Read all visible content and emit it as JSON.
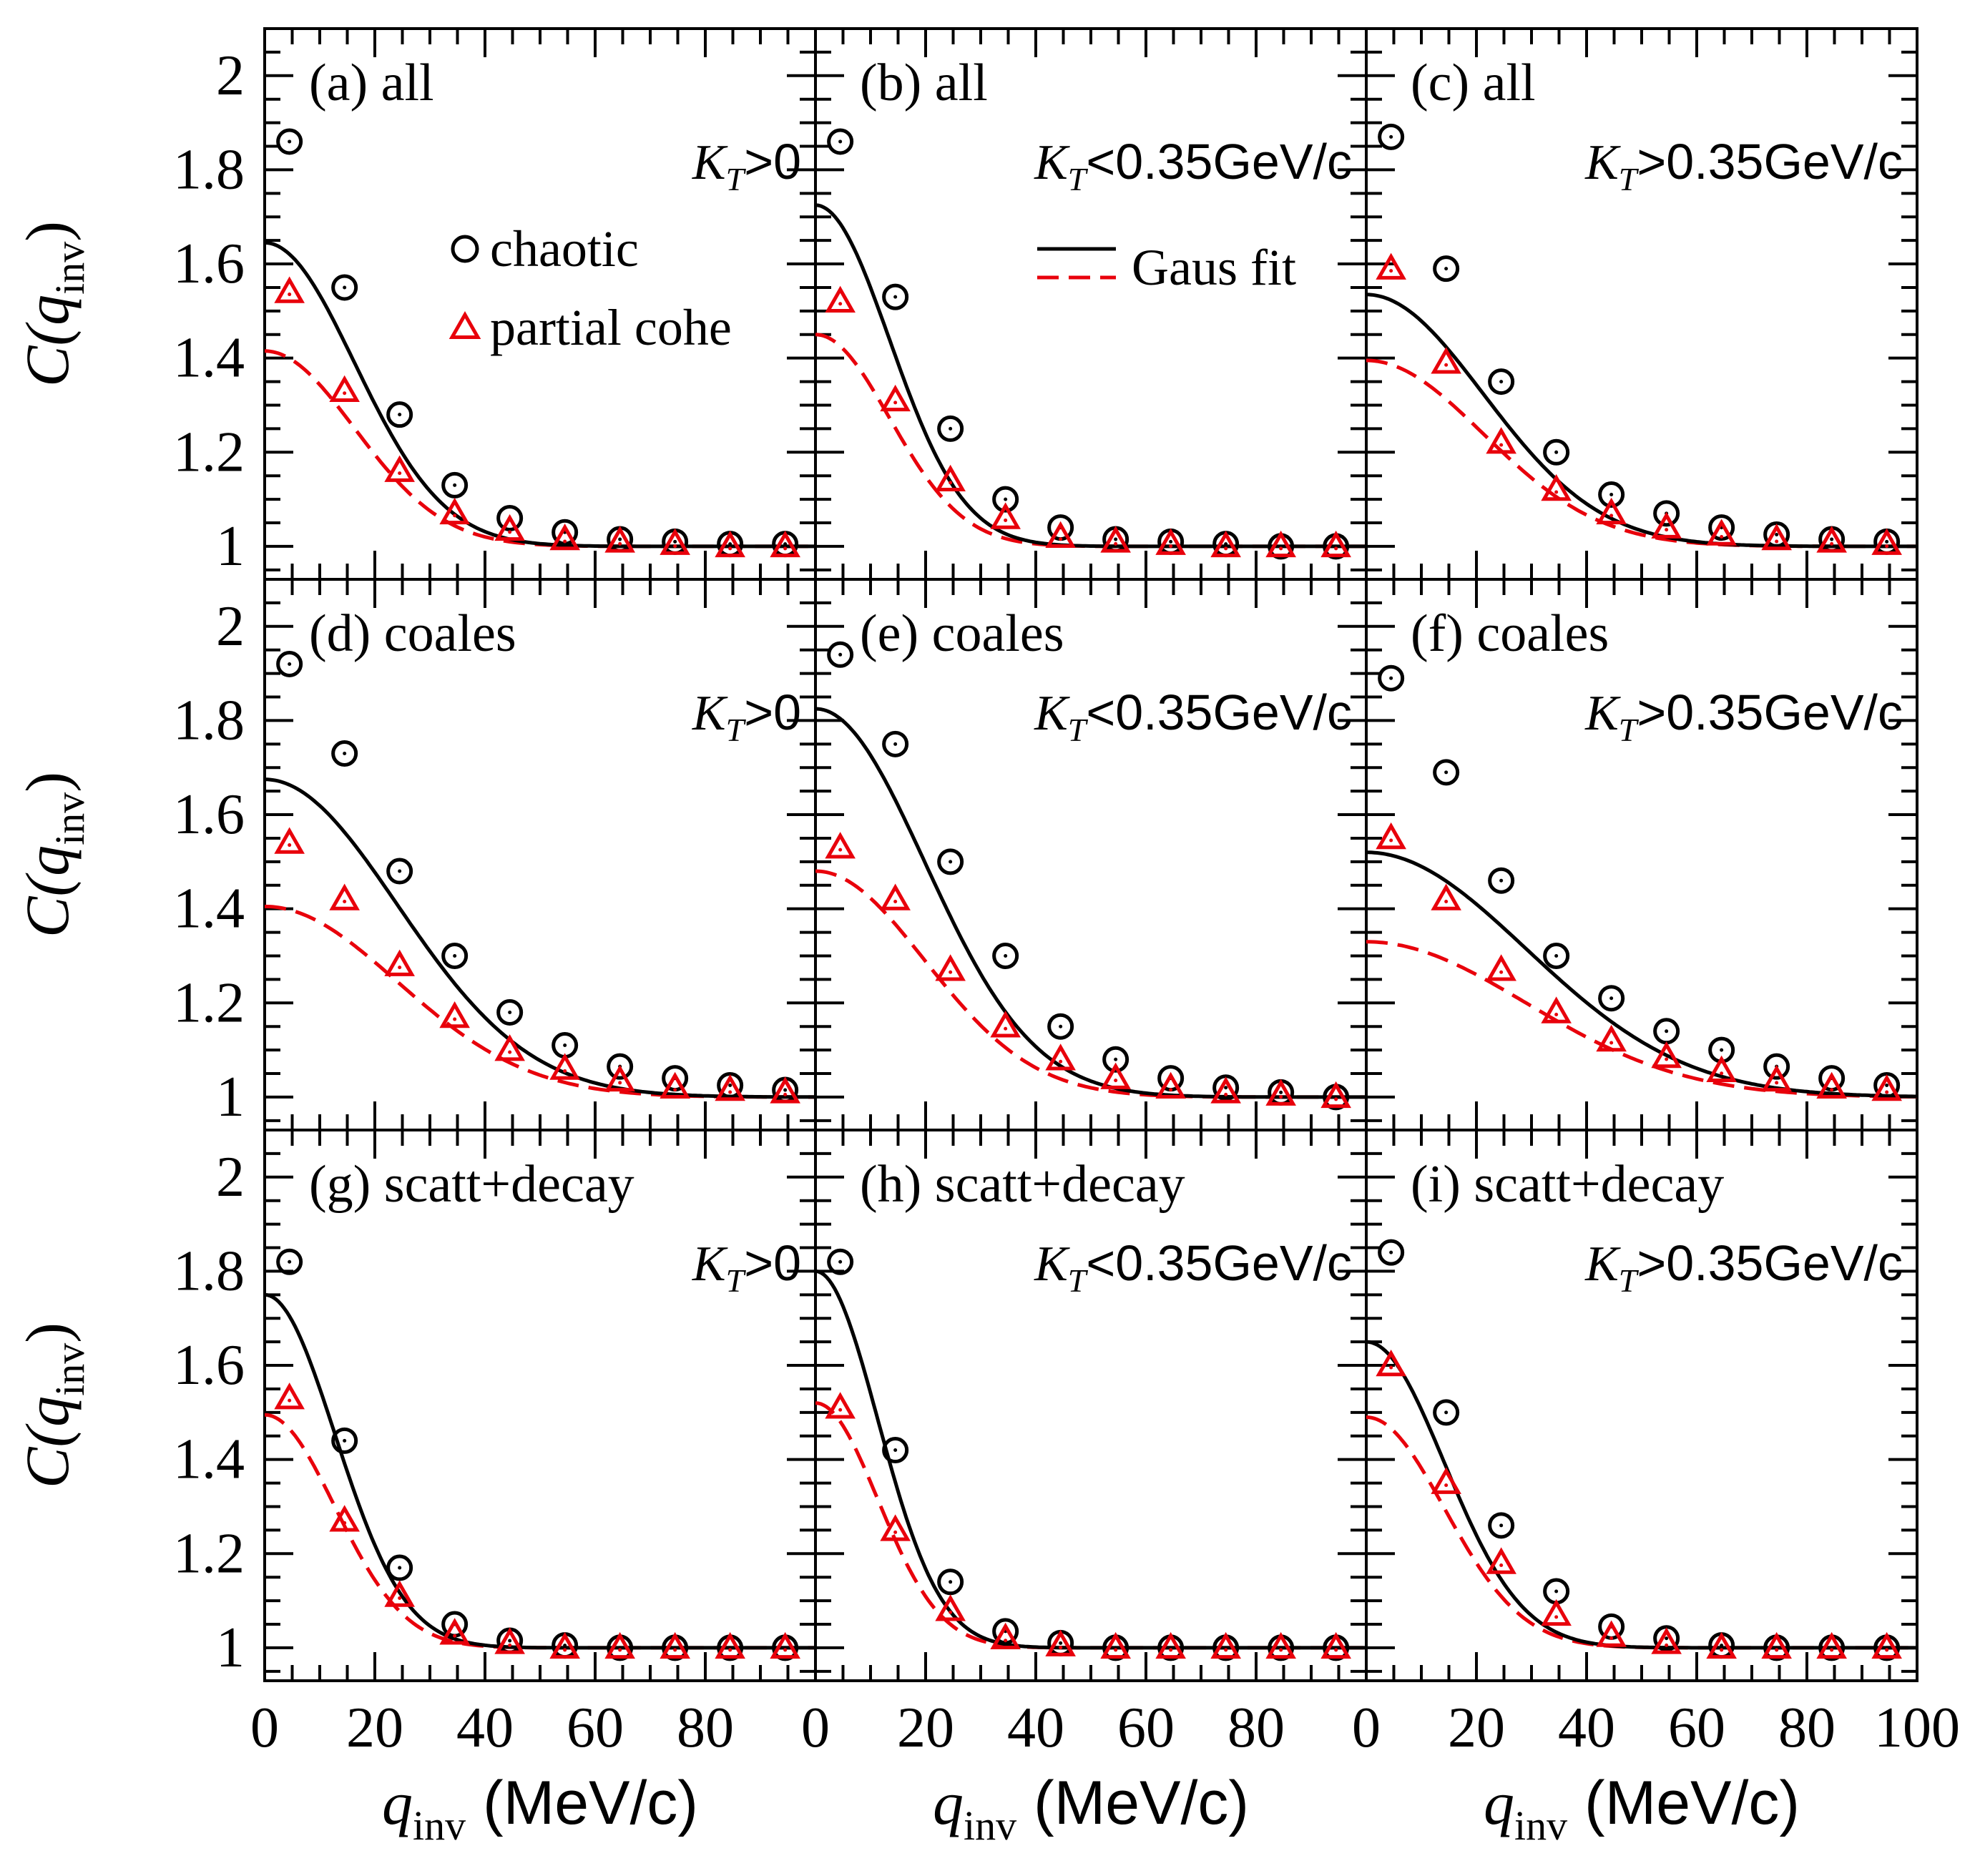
{
  "chart_data": {
    "type": "scatter",
    "layout": "3x3 grid, shared axes",
    "x_ticks": [
      "0",
      "20",
      "40",
      "60",
      "80",
      "100"
    ],
    "y_ticks": [
      "1",
      "1.2",
      "1.4",
      "1.6",
      "1.8",
      "2"
    ],
    "xlim": [
      0,
      100
    ],
    "ylim": [
      0.93,
      2.1
    ],
    "x_label": {
      "main": "q",
      "sub": "inv",
      "unit": " (MeV/c)"
    },
    "y_label": {
      "prefix": "C(",
      "main": "q",
      "sub": "inv",
      "suffix": ")"
    },
    "legend": {
      "chaotic": "chaotic",
      "partial": "partial cohe",
      "fit": "Gaus fit"
    },
    "colors": {
      "chaotic": "#000000",
      "partial": "#e8000b"
    },
    "x": [
      4.5,
      14.5,
      24.5,
      34.5,
      44.5,
      54.5,
      64.5,
      74.5,
      84.5,
      94.5
    ],
    "panels": [
      {
        "label": "(a) all",
        "kt": ">0",
        "chaotic": [
          1.86,
          1.55,
          1.28,
          1.13,
          1.06,
          1.03,
          1.015,
          1.01,
          1.005,
          1.005
        ],
        "partial": [
          1.54,
          1.33,
          1.16,
          1.07,
          1.035,
          1.015,
          1.01,
          1.005,
          1.0,
          1.0
        ],
        "fit_chaotic": {
          "amp": 0.645,
          "width": 23.0
        },
        "fit_partial": {
          "amp": 0.415,
          "width": 23.0
        }
      },
      {
        "label": "(b) all",
        "kt": "<0.35GeV/c",
        "chaotic": [
          1.86,
          1.53,
          1.25,
          1.1,
          1.04,
          1.015,
          1.01,
          1.005,
          1.0,
          1.0
        ],
        "partial": [
          1.52,
          1.31,
          1.14,
          1.06,
          1.02,
          1.01,
          1.005,
          1.0,
          1.0,
          1.0
        ],
        "fit_chaotic": {
          "amp": 0.725,
          "width": 19.0
        },
        "fit_partial": {
          "amp": 0.45,
          "width": 19.0
        }
      },
      {
        "label": "(c) all",
        "kt": ">0.35GeV/c",
        "chaotic": [
          1.87,
          1.59,
          1.35,
          1.2,
          1.11,
          1.07,
          1.04,
          1.025,
          1.015,
          1.01
        ],
        "partial": [
          1.59,
          1.39,
          1.22,
          1.12,
          1.07,
          1.04,
          1.025,
          1.015,
          1.01,
          1.005
        ],
        "fit_chaotic": {
          "amp": 0.535,
          "width": 30.0
        },
        "fit_partial": {
          "amp": 0.395,
          "width": 30.0
        }
      },
      {
        "label": "(d) coales",
        "kt": ">0",
        "chaotic": [
          1.92,
          1.73,
          1.48,
          1.3,
          1.18,
          1.11,
          1.065,
          1.04,
          1.025,
          1.015
        ],
        "partial": [
          1.54,
          1.42,
          1.28,
          1.17,
          1.1,
          1.06,
          1.035,
          1.02,
          1.015,
          1.01
        ],
        "fit_chaotic": {
          "amp": 0.675,
          "width": 34.0
        },
        "fit_partial": {
          "amp": 0.405,
          "width": 34.0
        }
      },
      {
        "label": "(e) coales",
        "kt": "<0.35GeV/c",
        "chaotic": [
          1.94,
          1.75,
          1.5,
          1.3,
          1.15,
          1.08,
          1.04,
          1.02,
          1.01,
          1.0
        ],
        "partial": [
          1.53,
          1.42,
          1.27,
          1.15,
          1.08,
          1.04,
          1.02,
          1.01,
          1.005,
          1.0
        ],
        "fit_chaotic": {
          "amp": 0.825,
          "width": 28.0
        },
        "fit_partial": {
          "amp": 0.48,
          "width": 28.0
        }
      },
      {
        "label": "(f) coales",
        "kt": ">0.35GeV/c",
        "chaotic": [
          1.89,
          1.69,
          1.46,
          1.3,
          1.21,
          1.14,
          1.1,
          1.065,
          1.04,
          1.025
        ],
        "partial": [
          1.55,
          1.42,
          1.27,
          1.18,
          1.12,
          1.085,
          1.055,
          1.035,
          1.02,
          1.015
        ],
        "fit_chaotic": {
          "amp": 0.52,
          "width": 41.0
        },
        "fit_partial": {
          "amp": 0.33,
          "width": 41.0
        }
      },
      {
        "label": "(g) scatt+decay",
        "kt": ">0",
        "chaotic": [
          1.82,
          1.44,
          1.17,
          1.05,
          1.015,
          1.005,
          1.0,
          1.0,
          1.0,
          1.0
        ],
        "partial": [
          1.53,
          1.27,
          1.11,
          1.03,
          1.01,
          1.0,
          1.0,
          1.0,
          1.0,
          1.0
        ],
        "fit_chaotic": {
          "amp": 0.75,
          "width": 18.0
        },
        "fit_partial": {
          "amp": 0.495,
          "width": 18.0
        }
      },
      {
        "label": "(h) scatt+decay",
        "kt": "<0.35GeV/c",
        "chaotic": [
          1.82,
          1.42,
          1.14,
          1.035,
          1.01,
          1.0,
          1.0,
          1.0,
          1.0,
          1.0
        ],
        "partial": [
          1.51,
          1.25,
          1.08,
          1.02,
          1.005,
          1.0,
          1.0,
          1.0,
          1.0,
          1.0
        ],
        "fit_chaotic": {
          "amp": 0.8,
          "width": 16.0
        },
        "fit_partial": {
          "amp": 0.52,
          "width": 16.0
        }
      },
      {
        "label": "(i) scatt+decay",
        "kt": ">0.35GeV/c",
        "chaotic": [
          1.84,
          1.5,
          1.26,
          1.12,
          1.045,
          1.02,
          1.005,
          1.0,
          1.0,
          1.0
        ],
        "partial": [
          1.6,
          1.35,
          1.18,
          1.07,
          1.025,
          1.01,
          1.0,
          1.0,
          1.0,
          1.0
        ],
        "fit_chaotic": {
          "amp": 0.65,
          "width": 20.0
        },
        "fit_partial": {
          "amp": 0.49,
          "width": 20.0
        }
      }
    ]
  }
}
